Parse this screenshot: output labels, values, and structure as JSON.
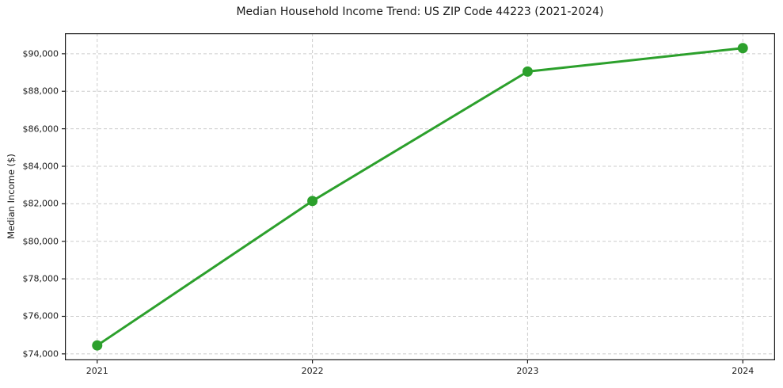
{
  "chart_data": {
    "type": "line",
    "title": "Median Household Income Trend: US ZIP Code 44223 (2021-2024)",
    "xlabel": "",
    "ylabel": "Median Income ($)",
    "x": [
      2021,
      2022,
      2023,
      2024
    ],
    "series": [
      {
        "name": "Median Household Income",
        "values": [
          74450,
          82150,
          89050,
          90300
        ]
      }
    ],
    "xticks": {
      "values": [
        2021,
        2022,
        2023,
        2024
      ],
      "labels": [
        "2021",
        "2022",
        "2023",
        "2024"
      ]
    },
    "yticks": {
      "values": [
        74000,
        76000,
        78000,
        80000,
        82000,
        84000,
        86000,
        88000,
        90000
      ],
      "labels": [
        "$74,000",
        "$76,000",
        "$78,000",
        "$80,000",
        "$82,000",
        "$84,000",
        "$86,000",
        "$88,000",
        "$90,000"
      ]
    },
    "xlim": [
      2020.85,
      2024.15
    ],
    "ylim": [
      73657,
      91092
    ],
    "grid": true,
    "grid_style": "dashed",
    "legend_position": "none",
    "line_color": "#2ca02c",
    "marker": "circle",
    "grid_color": "#cccccc",
    "axis_color": "#1a1a1a",
    "text_color": "#1a1a1a",
    "background_color": "#ffffff"
  }
}
